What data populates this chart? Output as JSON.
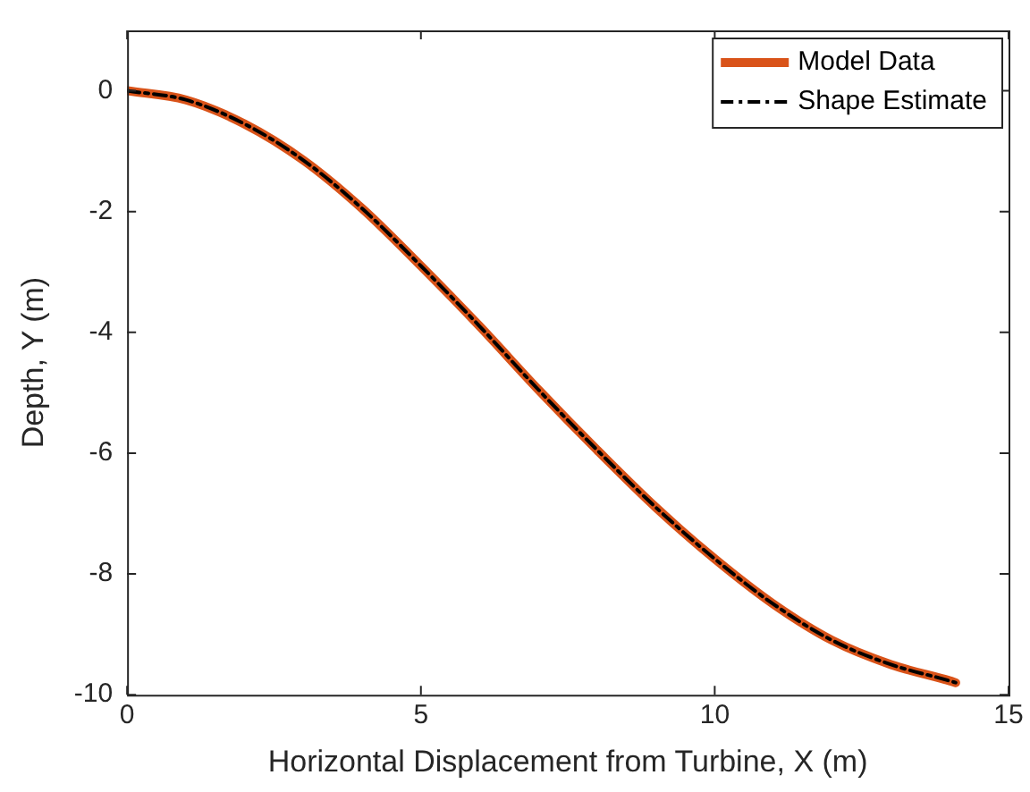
{
  "chart_data": {
    "type": "line",
    "xlabel": "Horizontal Displacement from Turbine, X (m)",
    "ylabel": "Depth, Y (m)",
    "xlim": [
      0,
      15
    ],
    "xticks": [
      0,
      5,
      10,
      15
    ],
    "ylim": [
      -10,
      1
    ],
    "yticks": [
      -10,
      -8,
      -6,
      -4,
      -2,
      0
    ],
    "grid": false,
    "legend": "top right",
    "marker": "none",
    "series": [
      {
        "name": "Model Data",
        "color": "#d95319",
        "line_style": "solid",
        "x": [
          0,
          1,
          2,
          3,
          4,
          5,
          6,
          7,
          8,
          9,
          10,
          11,
          12,
          13,
          14,
          14.1
        ],
        "values": [
          0,
          -0.15,
          -0.55,
          -1.15,
          -1.95,
          -2.9,
          -3.9,
          -4.95,
          -5.95,
          -6.9,
          -7.75,
          -8.5,
          -9.1,
          -9.5,
          -9.77,
          -9.8
        ]
      },
      {
        "name": "Shape Estimate",
        "color": "#000000",
        "line_style": "dashed",
        "x": [
          0,
          1,
          2,
          3,
          4,
          5,
          6,
          7,
          8,
          9,
          10,
          11,
          12,
          13,
          14,
          14.1
        ],
        "values": [
          0,
          -0.15,
          -0.55,
          -1.15,
          -1.95,
          -2.9,
          -3.9,
          -4.95,
          -5.95,
          -6.9,
          -7.75,
          -8.5,
          -9.1,
          -9.5,
          -9.77,
          -9.8
        ]
      }
    ]
  }
}
